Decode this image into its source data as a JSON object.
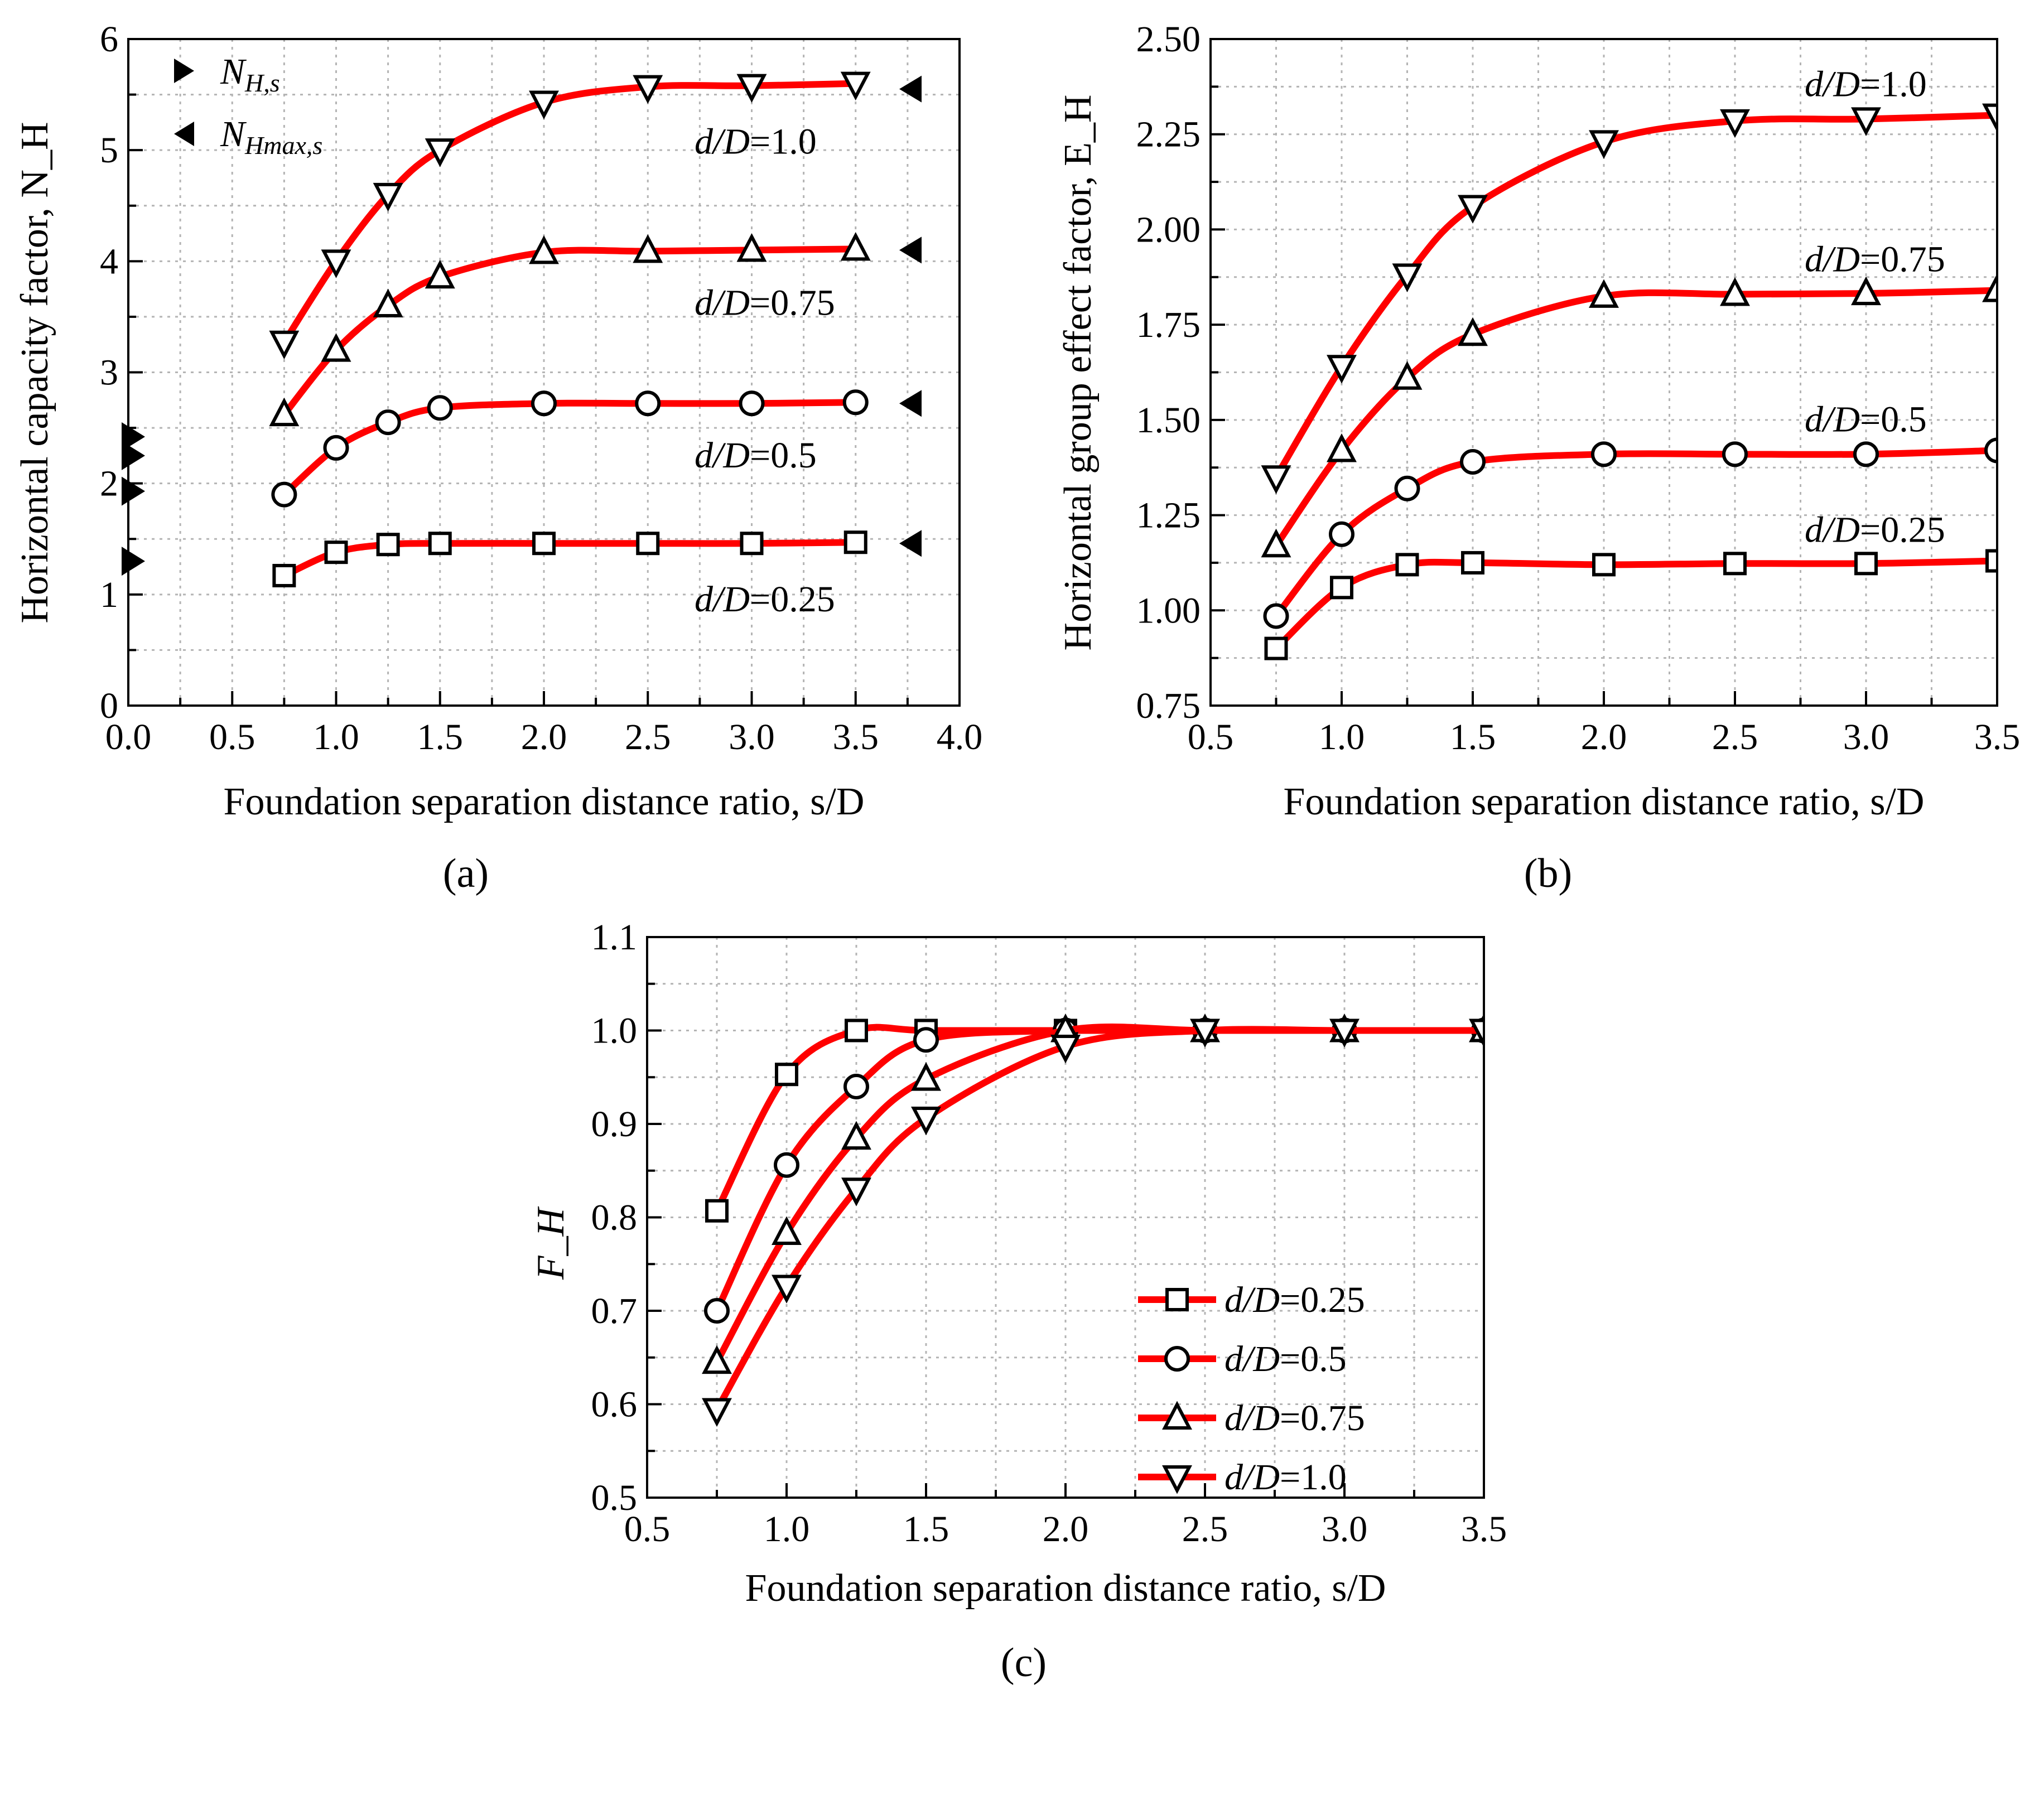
{
  "chart_data": [
    {
      "panel": "a",
      "panel_label": "(a)",
      "type": "line",
      "xlabel": "Foundation separation distance ratio, s/D",
      "ylabel": "Horizontal capacity factor, N_H",
      "xlim": [
        0.0,
        4.0
      ],
      "ylim": [
        0,
        6
      ],
      "xticks": [
        "0.0",
        "0.5",
        "1.0",
        "1.5",
        "2.0",
        "2.5",
        "3.0",
        "3.5",
        "4.0"
      ],
      "yticks": [
        "0",
        "1",
        "2",
        "3",
        "4",
        "5",
        "6"
      ],
      "grid": true,
      "x": [
        0.75,
        1.0,
        1.25,
        1.5,
        2.0,
        2.5,
        3.0,
        3.5
      ],
      "series": [
        {
          "name": "d/D=0.25",
          "label": "d/D=0.25",
          "marker": "square",
          "values": [
            1.17,
            1.38,
            1.45,
            1.46,
            1.46,
            1.46,
            1.46,
            1.47
          ]
        },
        {
          "name": "d/D=0.5",
          "label": "d/D=0.5",
          "marker": "circle",
          "values": [
            1.9,
            2.32,
            2.55,
            2.68,
            2.72,
            2.72,
            2.72,
            2.73
          ]
        },
        {
          "name": "d/D=0.75",
          "label": "d/D=0.75",
          "marker": "triangle-up",
          "values": [
            2.62,
            3.2,
            3.6,
            3.86,
            4.08,
            4.09,
            4.1,
            4.11
          ]
        },
        {
          "name": "d/D=1.0",
          "label": "d/D=1.0",
          "marker": "triangle-down",
          "values": [
            3.27,
            4.0,
            4.6,
            5.0,
            5.43,
            5.57,
            5.58,
            5.6
          ]
        }
      ],
      "single_foundation_NHs": [
        1.3,
        1.93,
        2.25,
        2.42
      ],
      "single_foundation_NHmaxs": [
        1.46,
        2.72,
        4.1,
        5.55
      ],
      "legend": {
        "placement": "top-left",
        "entries": [
          {
            "marker": "triangle-right",
            "label_main": "N",
            "label_sub": "H,s"
          },
          {
            "marker": "triangle-left",
            "label_main": "N",
            "label_sub": "Hmax,s"
          }
        ]
      }
    },
    {
      "panel": "b",
      "panel_label": "(b)",
      "type": "line",
      "xlabel": "Foundation separation distance ratio, s/D",
      "ylabel": "Horizontal group effect factor, E_H",
      "xlim": [
        0.5,
        3.5
      ],
      "ylim": [
        0.75,
        2.5
      ],
      "xticks": [
        "0.5",
        "1.0",
        "1.5",
        "2.0",
        "2.5",
        "3.0",
        "3.5"
      ],
      "yticks": [
        "0.75",
        "1.00",
        "1.25",
        "1.50",
        "1.75",
        "2.00",
        "2.25",
        "2.50"
      ],
      "grid": true,
      "x": [
        0.75,
        1.0,
        1.25,
        1.5,
        2.0,
        2.5,
        3.0,
        3.5
      ],
      "series": [
        {
          "name": "d/D=0.25",
          "label": "d/D=0.25",
          "marker": "square",
          "values": [
            0.9,
            1.06,
            1.12,
            1.125,
            1.12,
            1.123,
            1.123,
            1.13
          ]
        },
        {
          "name": "d/D=0.5",
          "label": "d/D=0.5",
          "marker": "circle",
          "values": [
            0.985,
            1.2,
            1.32,
            1.39,
            1.41,
            1.41,
            1.41,
            1.42
          ]
        },
        {
          "name": "d/D=0.75",
          "label": "d/D=0.75",
          "marker": "triangle-up",
          "values": [
            1.17,
            1.42,
            1.61,
            1.725,
            1.825,
            1.83,
            1.832,
            1.84
          ]
        },
        {
          "name": "d/D=1.0",
          "label": "d/D=1.0",
          "marker": "triangle-down",
          "values": [
            1.35,
            1.64,
            1.88,
            2.06,
            2.23,
            2.285,
            2.29,
            2.3
          ]
        }
      ]
    },
    {
      "panel": "c",
      "panel_label": "(c)",
      "type": "line",
      "xlabel": "Foundation separation distance ratio, s/D",
      "ylabel": "F_H",
      "xlim": [
        0.5,
        3.5
      ],
      "ylim": [
        0.5,
        1.1
      ],
      "xticks": [
        "0.5",
        "1.0",
        "1.5",
        "2.0",
        "2.5",
        "3.0",
        "3.5"
      ],
      "yticks": [
        "0.5",
        "0.6",
        "0.7",
        "0.8",
        "0.9",
        "1.0",
        "1.1"
      ],
      "grid": true,
      "x": [
        0.75,
        1.0,
        1.25,
        1.5,
        2.0,
        2.5,
        3.0,
        3.5
      ],
      "series": [
        {
          "name": "d/D=0.25",
          "label": "d/D=0.25",
          "marker": "square",
          "values": [
            0.807,
            0.953,
            1.0,
            1.0,
            1.0,
            1.0,
            1.0,
            1.0
          ]
        },
        {
          "name": "d/D=0.5",
          "label": "d/D=0.5",
          "marker": "circle",
          "values": [
            0.7,
            0.856,
            0.94,
            0.99,
            1.0,
            1.0,
            1.0,
            1.0
          ]
        },
        {
          "name": "d/D=0.75",
          "label": "d/D=0.75",
          "marker": "triangle-up",
          "values": [
            0.645,
            0.783,
            0.885,
            0.948,
            1.0,
            1.0,
            1.0,
            1.0
          ]
        },
        {
          "name": "d/D=1.0",
          "label": "d/D=1.0",
          "marker": "triangle-down",
          "values": [
            0.594,
            0.726,
            0.83,
            0.906,
            0.983,
            1.0,
            1.0,
            1.0
          ]
        }
      ],
      "legend": {
        "placement": "center-right",
        "entries": [
          "d/D=0.25",
          "d/D=0.5",
          "d/D=0.75",
          "d/D=1.0"
        ]
      }
    }
  ],
  "colors": {
    "line": "#ff0000",
    "marker_edge": "#000000",
    "marker_fill": "#ffffff",
    "grid": "#b4b4b4",
    "axis": "#000000"
  }
}
